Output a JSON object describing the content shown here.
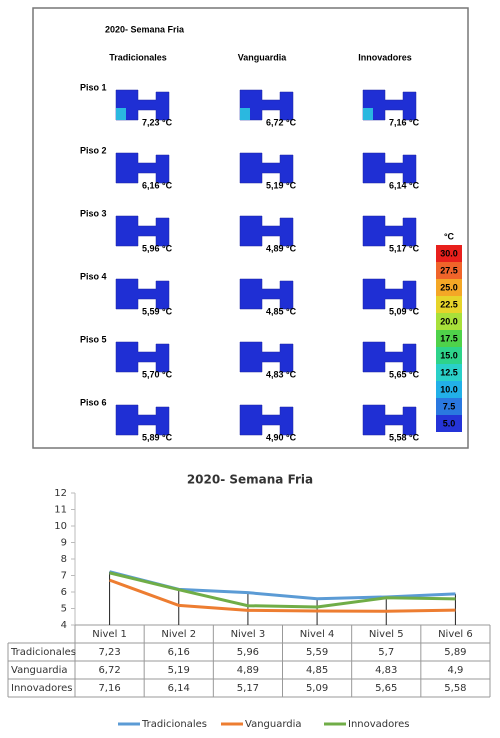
{
  "thermal_panel": {
    "title": "2020- Semana Fria",
    "columns": [
      "Tradicionales",
      "Vanguardia",
      "Innovadores"
    ],
    "rows": [
      {
        "label": "Piso 1",
        "values": [
          "7,23 °C",
          "6,72 °C",
          "7,16 °C"
        ]
      },
      {
        "label": "Piso 2",
        "values": [
          "6,16 °C",
          "5,19 °C",
          "6,14 °C"
        ]
      },
      {
        "label": "Piso 3",
        "values": [
          "5,96 °C",
          "4,89 °C",
          "5,17 °C"
        ]
      },
      {
        "label": "Piso 4",
        "values": [
          "5,59 °C",
          "4,85 °C",
          "5,09 °C"
        ]
      },
      {
        "label": "Piso 5",
        "values": [
          "5,70 °C",
          "4,83 °C",
          "5,65 °C"
        ]
      },
      {
        "label": "Piso 6",
        "values": [
          "5,89 °C",
          "4,90 °C",
          "5,58 °C"
        ]
      }
    ],
    "colorbar": {
      "unit": "°C",
      "labels": [
        "30.0",
        "27.5",
        "25.0",
        "22.5",
        "20.0",
        "17.5",
        "15.0",
        "12.5",
        "10.0",
        "7.5",
        "5.0"
      ],
      "colors": [
        "#e8201c",
        "#f0642a",
        "#f4a726",
        "#e6d42a",
        "#a8e03a",
        "#4fd24a",
        "#2ed38a",
        "#2ad0c8",
        "#22b0e8",
        "#2a78e0",
        "#2434d8"
      ]
    }
  },
  "chart_data": {
    "type": "line",
    "title": "2020- Semana Fria",
    "categories": [
      "Nivel 1",
      "Nivel 2",
      "Nivel 3",
      "Nivel 4",
      "Nivel 5",
      "Nivel 6"
    ],
    "series": [
      {
        "name": "Tradicionales",
        "color": "#5b9bd5",
        "values": [
          7.23,
          6.16,
          5.96,
          5.59,
          5.7,
          5.89
        ],
        "value_labels": [
          "7,23",
          "6,16",
          "5,96",
          "5,59",
          "5,7",
          "5,89"
        ]
      },
      {
        "name": "Vanguardia",
        "color": "#ed7d31",
        "values": [
          6.72,
          5.19,
          4.89,
          4.85,
          4.83,
          4.9
        ],
        "value_labels": [
          "6,72",
          "5,19",
          "4,89",
          "4,85",
          "4,83",
          "4,9"
        ]
      },
      {
        "name": "Innovadores",
        "color": "#70ad47",
        "values": [
          7.16,
          6.14,
          5.17,
          5.09,
          5.65,
          5.58
        ],
        "value_labels": [
          "7,16",
          "6,14",
          "5,17",
          "5,09",
          "5,65",
          "5,58"
        ]
      }
    ],
    "ylim": [
      4,
      12
    ],
    "yticks": [
      4,
      5,
      6,
      7,
      8,
      9,
      10,
      11,
      12
    ],
    "grid": false
  }
}
